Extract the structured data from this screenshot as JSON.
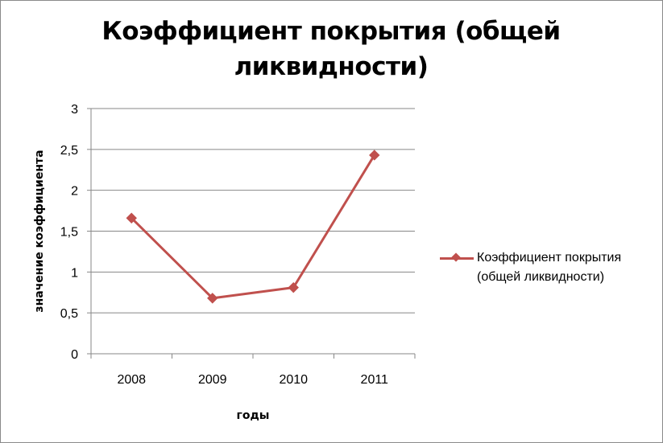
{
  "chart_data": {
    "type": "line",
    "title": "Коэффициент покрытия (общей ликвидности)",
    "xlabel": "годы",
    "ylabel": "значение коэффициента",
    "categories": [
      "2008",
      "2009",
      "2010",
      "2011"
    ],
    "ylim": [
      0,
      3
    ],
    "yticks": [
      "0",
      "0,5",
      "1",
      "1,5",
      "2",
      "2,5",
      "3"
    ],
    "grid": true,
    "legend_position": "right",
    "series": [
      {
        "name": "Коэффициент покрытия (общей ликвидности)",
        "values": [
          1.66,
          0.68,
          0.81,
          2.43
        ],
        "color": "#C0504D",
        "marker": "diamond"
      }
    ]
  }
}
